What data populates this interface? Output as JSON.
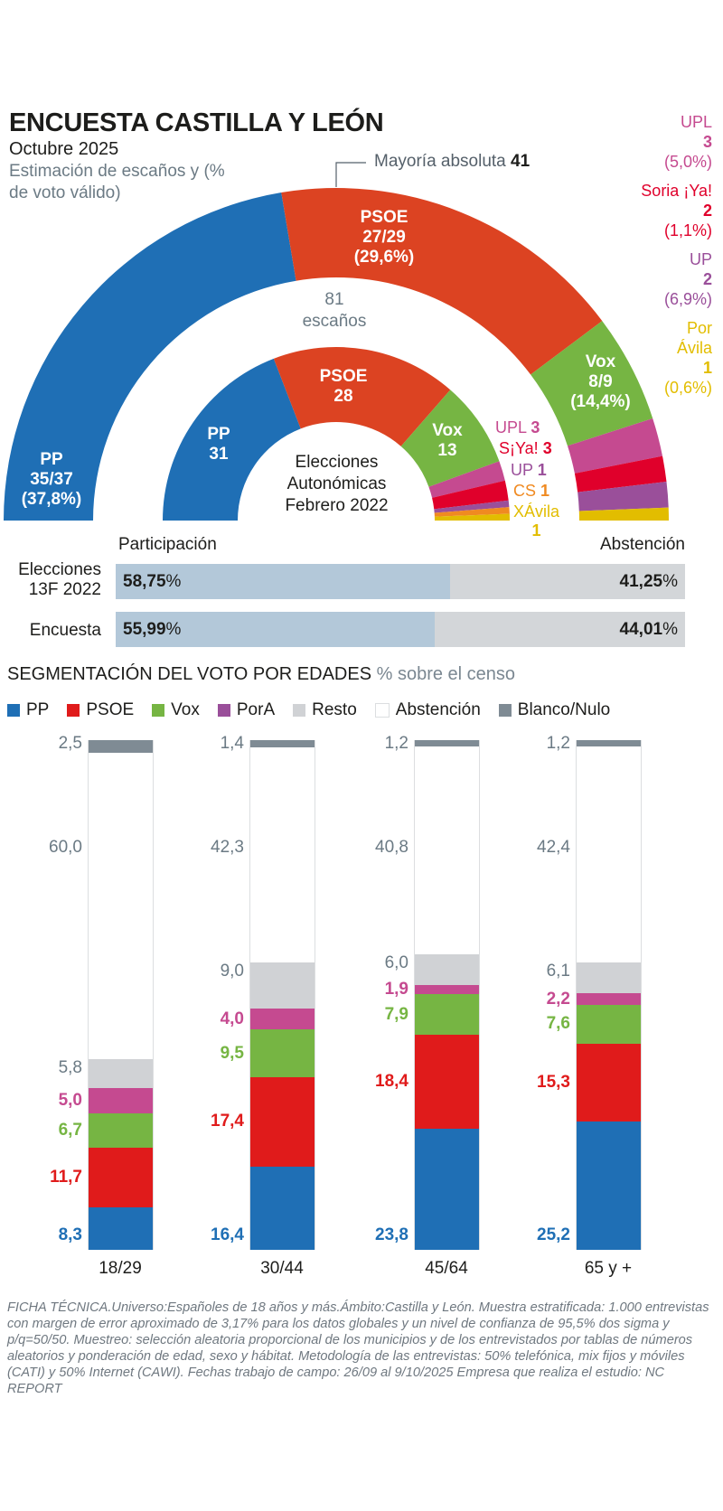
{
  "header": {
    "title": "ENCUESTA CASTILLA Y LEÓN",
    "subtitle": "Octubre 2025",
    "description": "Estimación de escaños y (% de voto válido)",
    "majority_text": "Mayoría absoluta",
    "majority_value": "41",
    "total_seats": "81",
    "total_seats_label": "escaños",
    "inner_caption": [
      "Elecciones",
      "Autonómicas",
      "Febrero 2022"
    ]
  },
  "colors": {
    "PP": "#1f6fb5",
    "PSOE": "#dc4322",
    "Vox": "#76b543",
    "UPL": "#c54a90",
    "SoriaYa": "#e0002b",
    "UP": "#9a4f9a",
    "PorAvila": "#e2bd00",
    "CS": "#f08a21",
    "Resto": "#d0d2d5",
    "Abstencion": "#ffffff",
    "BlancoNulo": "#7f8b94",
    "PSOE_bar": "#e01b1b",
    "PorA_bar": "#c54a90"
  },
  "chart_data": [
    {
      "type": "pie",
      "title": "Estimación de escaños y (% de voto válido) — Encuesta Octubre 2025",
      "total": 81,
      "slices": [
        {
          "party": "PP",
          "seats": "35/37",
          "seat_value": 36,
          "pct": "37,8%",
          "color_key": "PP"
        },
        {
          "party": "PSOE",
          "seats": "27/29",
          "seat_value": 28,
          "pct": "29,6%",
          "color_key": "PSOE"
        },
        {
          "party": "Vox",
          "seats": "8/9",
          "seat_value": 8.5,
          "pct": "14,4%",
          "color_key": "Vox"
        },
        {
          "party": "UPL",
          "seats": "3",
          "seat_value": 3,
          "pct": "5,0%",
          "color_key": "UPL"
        },
        {
          "party": "Soria ¡Ya!",
          "seats": "2",
          "seat_value": 2,
          "pct": "1,1%",
          "color_key": "SoriaYa"
        },
        {
          "party": "UP",
          "seats": "2",
          "seat_value": 2,
          "pct": "6,9%",
          "color_key": "UP"
        },
        {
          "party": "Por Ávila",
          "seats": "1",
          "seat_value": 1,
          "pct": "0,6%",
          "color_key": "PorAvila"
        }
      ],
      "annotation": "Mayoría absoluta 41"
    },
    {
      "type": "pie",
      "title": "Elecciones Autonómicas Febrero 2022",
      "total": 81,
      "slices": [
        {
          "party": "PP",
          "seats": 31,
          "color_key": "PP"
        },
        {
          "party": "PSOE",
          "seats": 28,
          "color_key": "PSOE"
        },
        {
          "party": "Vox",
          "seats": 13,
          "color_key": "Vox"
        },
        {
          "party": "UPL",
          "seats": 3,
          "color_key": "UPL"
        },
        {
          "party": "S¡Ya!",
          "seats": 3,
          "color_key": "SoriaYa"
        },
        {
          "party": "UP",
          "seats": 1,
          "color_key": "UP"
        },
        {
          "party": "CS",
          "seats": 1,
          "color_key": "CS"
        },
        {
          "party": "XÁvila",
          "seats": 1,
          "color_key": "PorAvila"
        }
      ]
    },
    {
      "type": "bar",
      "title": "Participación / Abstención",
      "categories": [
        "Elecciones 13F 2022",
        "Encuesta"
      ],
      "series": [
        {
          "name": "Participación",
          "values": [
            58.75,
            55.99
          ],
          "labels": [
            "58,75",
            "55,99"
          ]
        },
        {
          "name": "Abstención",
          "values": [
            41.25,
            44.01
          ],
          "labels": [
            "41,25",
            "44,01"
          ]
        }
      ]
    },
    {
      "type": "bar",
      "title": "SEGMENTACIÓN DEL VOTO POR EDADES",
      "subtitle": "% sobre el censo",
      "stacked": true,
      "categories": [
        "18/29",
        "30/44",
        "45/64",
        "65 y +"
      ],
      "series": [
        {
          "name": "PP",
          "color_key": "PP",
          "values": [
            8.3,
            16.4,
            23.8,
            25.2
          ],
          "labels": [
            "8,3",
            "16,4",
            "23,8",
            "25,2"
          ]
        },
        {
          "name": "PSOE",
          "color_key": "PSOE_bar",
          "values": [
            11.7,
            17.4,
            18.4,
            15.3
          ],
          "labels": [
            "11,7",
            "17,4",
            "18,4",
            "15,3"
          ]
        },
        {
          "name": "Vox",
          "color_key": "Vox",
          "values": [
            6.7,
            9.5,
            7.9,
            7.6
          ],
          "labels": [
            "6,7",
            "9,5",
            "7,9",
            "7,6"
          ]
        },
        {
          "name": "PorA",
          "color_key": "PorA_bar",
          "values": [
            5.0,
            4.0,
            1.9,
            2.2
          ],
          "labels": [
            "5,0",
            "4,0",
            "1,9",
            "2,2"
          ]
        },
        {
          "name": "Resto",
          "color_key": "Resto",
          "values": [
            5.8,
            9.0,
            6.0,
            6.1
          ],
          "labels": [
            "5,8",
            "9,0",
            "6,0",
            "6,1"
          ]
        },
        {
          "name": "Abstención",
          "color_key": "Abstencion",
          "values": [
            60.0,
            42.3,
            40.8,
            42.4
          ],
          "labels": [
            "60,0",
            "42,3",
            "40,8",
            "42,4"
          ]
        },
        {
          "name": "Blanco/Nulo",
          "color_key": "BlancoNulo",
          "values": [
            2.5,
            1.4,
            1.2,
            1.2
          ],
          "labels": [
            "2,5",
            "1,4",
            "1,2",
            "1,2"
          ]
        }
      ]
    }
  ],
  "outer_labels": {
    "PP": [
      "PP",
      "35/37",
      "(37,8%)"
    ],
    "PSOE": [
      "PSOE",
      "27/29",
      "(29,6%)"
    ],
    "Vox": [
      "Vox",
      "8/9",
      "(14,4%)"
    ],
    "UPL": [
      "UPL",
      "3",
      "(5,0%)"
    ],
    "SoriaYa": [
      "Soria ¡Ya!",
      "2",
      "(1,1%)"
    ],
    "UP": [
      "UP",
      "2",
      "(6,9%)"
    ],
    "PorAvila": [
      "Por",
      "Ávila",
      "1",
      "(0,6%)"
    ]
  },
  "inner_labels": {
    "PP": [
      "PP",
      "31"
    ],
    "PSOE": [
      "PSOE",
      "28"
    ],
    "Vox": [
      "Vox",
      "13"
    ],
    "UPL": [
      "UPL",
      "3"
    ],
    "SoriaYa": [
      "S¡Ya!",
      "3"
    ],
    "UP": [
      "UP",
      "1"
    ],
    "CS": [
      "CS",
      "1"
    ],
    "XAvila": [
      "XÁvila",
      "1"
    ]
  },
  "participation": {
    "head_left": "Participación",
    "head_right": "Abstención",
    "rows": [
      {
        "label": [
          "Elecciones",
          "13F 2022"
        ],
        "part": "58,75",
        "abst": "41,25",
        "fraction": 0.5875
      },
      {
        "label": [
          "Encuesta"
        ],
        "part": "55,99",
        "abst": "44,01",
        "fraction": 0.5599
      }
    ],
    "pct_sign": "%"
  },
  "segmentation": {
    "title": "SEGMENTACIÓN DEL VOTO POR EDADES",
    "subtitle": "% sobre el censo",
    "legend": [
      {
        "label": "PP",
        "color_key": "PP"
      },
      {
        "label": "PSOE",
        "color_key": "PSOE_bar"
      },
      {
        "label": "Vox",
        "color_key": "Vox"
      },
      {
        "label": "PorA",
        "color_key": "UP"
      },
      {
        "label": "Resto",
        "color_key": "Resto"
      },
      {
        "label": "Abstención",
        "color_key": "Abstencion"
      },
      {
        "label": "Blanco/Nulo",
        "color_key": "BlancoNulo"
      }
    ]
  },
  "footer": {
    "ficha": "FICHA TÉCNICA.Universo:Españoles de 18 años y más.Ámbito:Castilla y León. Muestra estratificada: 1.000 entrevistas con margen de error aproximado de 3,17% para los datos globales y un nivel de confianza de 95,5% dos sigma y p/q=50/50. Muestreo: selección aleatoria proporcional de los municipios y de los entrevistados por tablas de números aleatorios y ponderación de edad, sexo y hábitat. Metodología de las entrevistas: 50% telefónica, mix fijos y móviles (CATI) y 50% Internet (CAWI). Fechas trabajo de campo: 26/09 al 9/10/2025 Empresa que realiza el estudio: NC REPORT"
  }
}
